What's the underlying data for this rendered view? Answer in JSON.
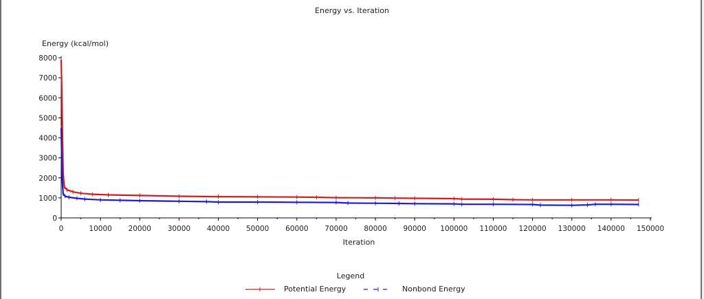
{
  "chart_data": {
    "type": "line",
    "title": "Energy vs. Iteration",
    "xlabel": "Iteration",
    "ylabel": "Energy (kcal/mol)",
    "xlim": [
      0,
      150000
    ],
    "ylim": [
      0,
      8000
    ],
    "xticks": [
      0,
      10000,
      20000,
      30000,
      40000,
      50000,
      60000,
      70000,
      80000,
      90000,
      100000,
      110000,
      120000,
      130000,
      140000,
      150000
    ],
    "yticks": [
      0,
      1000,
      2000,
      3000,
      4000,
      5000,
      6000,
      7000,
      8000
    ],
    "grid": false,
    "legend": {
      "title": "Legend",
      "position": "bottom-center"
    },
    "series": [
      {
        "name": "Potential Energy",
        "color": "#d01c1c",
        "points": [
          [
            0,
            7900
          ],
          [
            150,
            6500
          ],
          [
            300,
            4500
          ],
          [
            500,
            2200
          ],
          [
            800,
            1550
          ],
          [
            1500,
            1400
          ],
          [
            3000,
            1300
          ],
          [
            5000,
            1230
          ],
          [
            8000,
            1180
          ],
          [
            12000,
            1150
          ],
          [
            20000,
            1120
          ],
          [
            30000,
            1080
          ],
          [
            40000,
            1060
          ],
          [
            50000,
            1050
          ],
          [
            60000,
            1040
          ],
          [
            65000,
            1030
          ],
          [
            70000,
            1010
          ],
          [
            80000,
            1000
          ],
          [
            85000,
            990
          ],
          [
            90000,
            980
          ],
          [
            100000,
            960
          ],
          [
            102000,
            940
          ],
          [
            110000,
            930
          ],
          [
            115000,
            910
          ],
          [
            120000,
            900
          ],
          [
            130000,
            900
          ],
          [
            140000,
            900
          ],
          [
            147000,
            890
          ]
        ]
      },
      {
        "name": "Nonbond Energy",
        "color": "#1c1cd0",
        "points": [
          [
            0,
            4500
          ],
          [
            150,
            2800
          ],
          [
            300,
            1800
          ],
          [
            500,
            1200
          ],
          [
            1000,
            1080
          ],
          [
            2000,
            1030
          ],
          [
            4000,
            980
          ],
          [
            6000,
            940
          ],
          [
            10000,
            900
          ],
          [
            15000,
            880
          ],
          [
            20000,
            860
          ],
          [
            30000,
            830
          ],
          [
            37000,
            810
          ],
          [
            40000,
            790
          ],
          [
            50000,
            790
          ],
          [
            60000,
            780
          ],
          [
            70000,
            770
          ],
          [
            73000,
            740
          ],
          [
            80000,
            730
          ],
          [
            86000,
            720
          ],
          [
            90000,
            710
          ],
          [
            100000,
            700
          ],
          [
            102000,
            680
          ],
          [
            110000,
            680
          ],
          [
            120000,
            670
          ],
          [
            122000,
            640
          ],
          [
            130000,
            630
          ],
          [
            134000,
            650
          ],
          [
            136000,
            680
          ],
          [
            140000,
            680
          ],
          [
            147000,
            670
          ]
        ]
      }
    ]
  }
}
